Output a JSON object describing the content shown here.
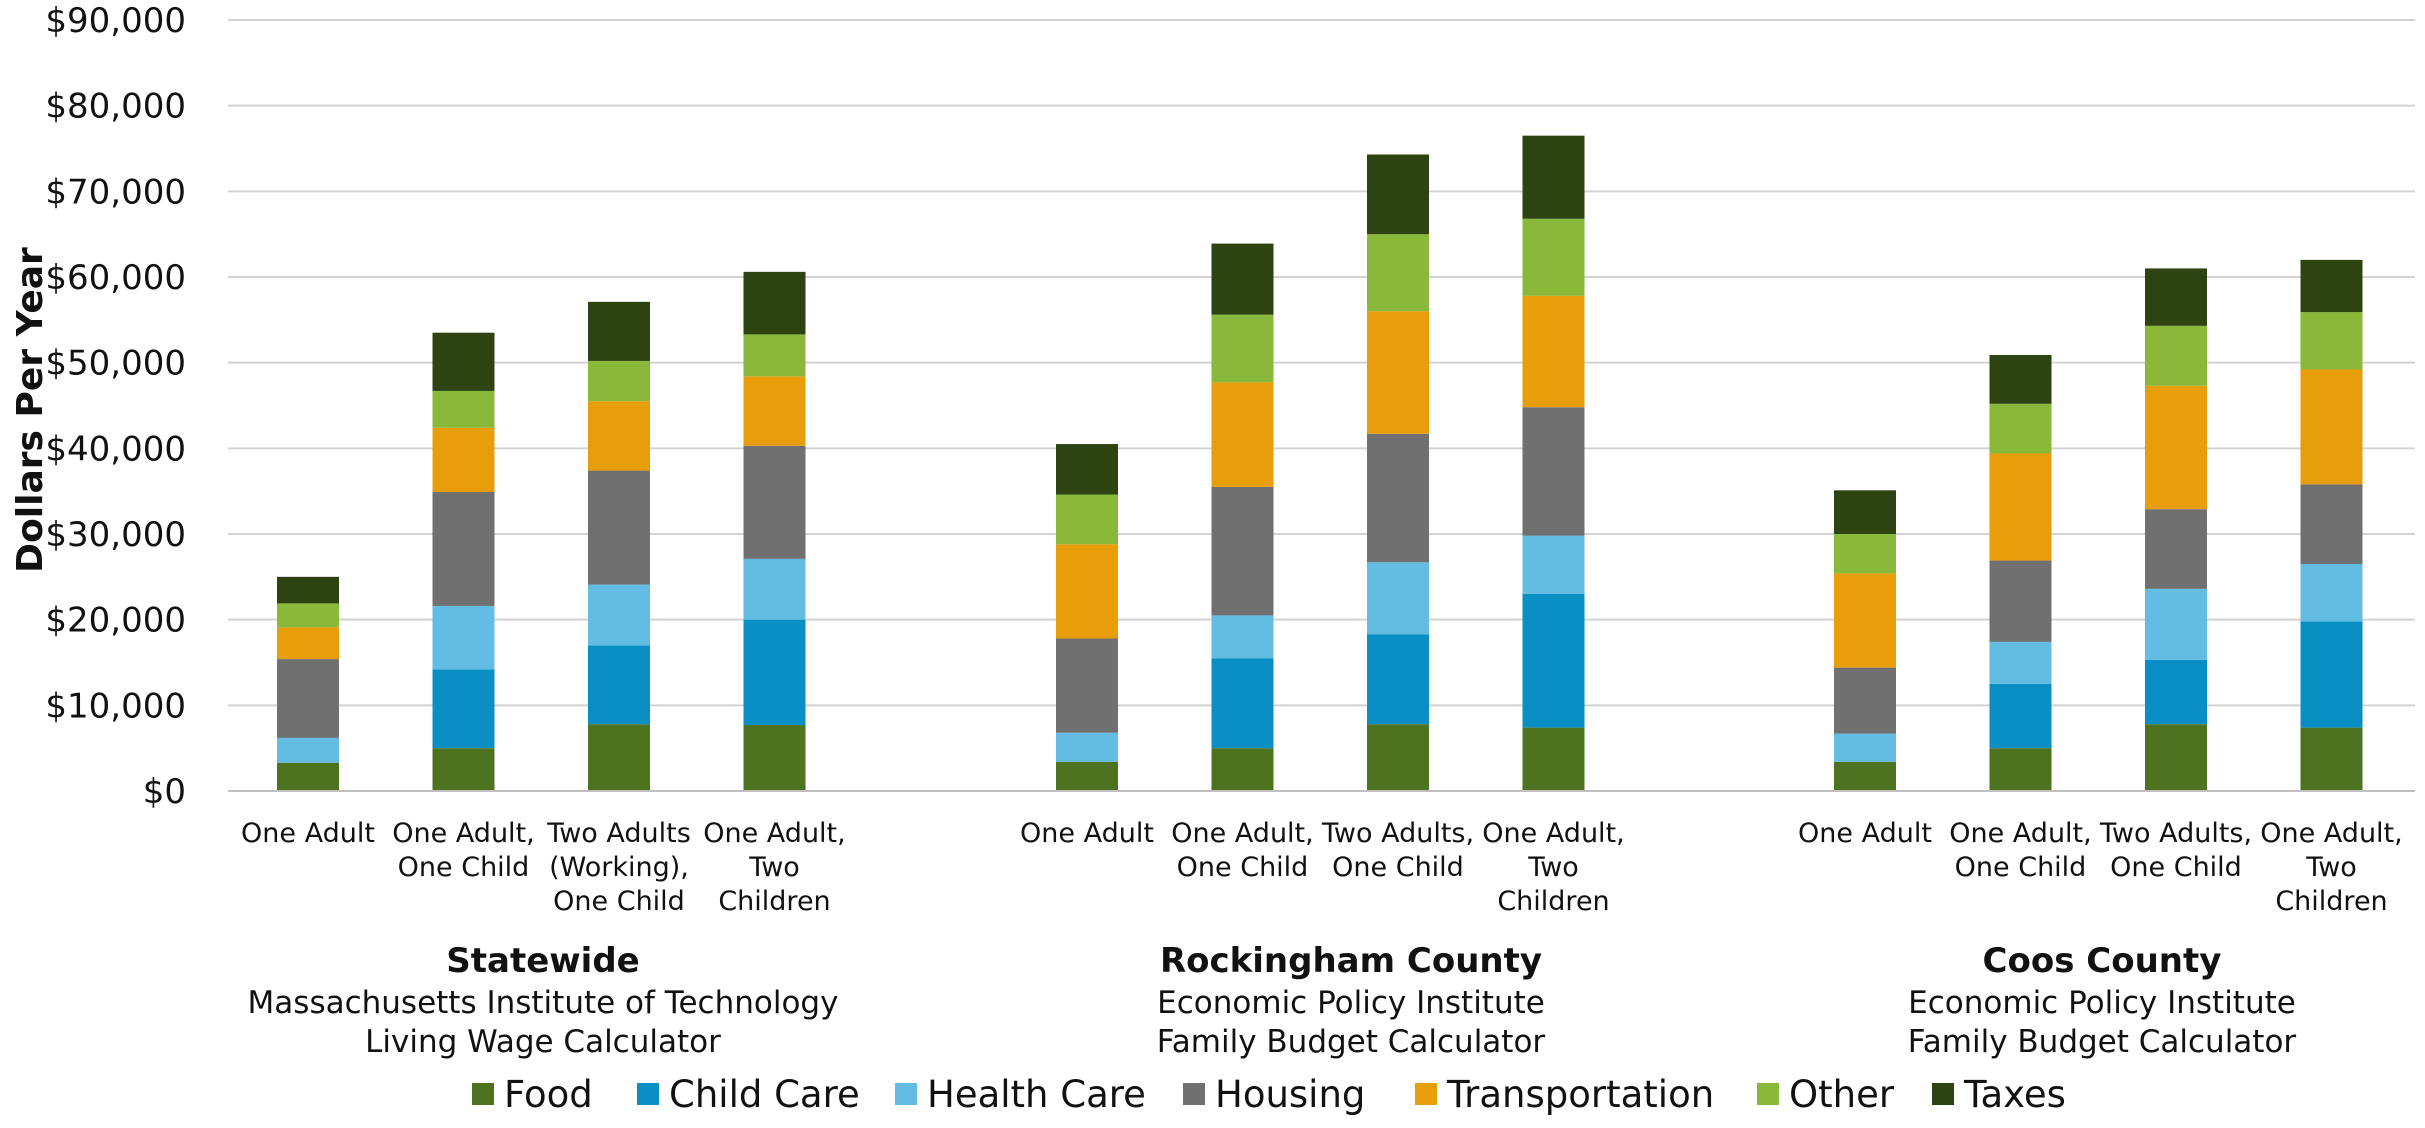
{
  "chart_data": {
    "type": "bar",
    "stacked": true,
    "ylabel": "Dollars Per Year",
    "ylim": [
      0,
      90000
    ],
    "yticks": [
      0,
      10000,
      20000,
      30000,
      40000,
      50000,
      60000,
      70000,
      80000,
      90000
    ],
    "ytick_labels": [
      "$0",
      "$10,000",
      "$20,000",
      "$30,000",
      "$40,000",
      "$50,000",
      "$60,000",
      "$70,000",
      "$80,000",
      "$90,000"
    ],
    "grid": true,
    "legend_position": "bottom",
    "groups": [
      {
        "title": "Statewide",
        "subtitle": [
          "Massachusetts Institute of Technology",
          "Living Wage Calculator"
        ],
        "categories": [
          [
            "One Adult"
          ],
          [
            "One Adult,",
            "One Child"
          ],
          [
            "Two Adults",
            "(Working),",
            "One Child"
          ],
          [
            "One Adult,",
            "Two",
            "Children"
          ]
        ]
      },
      {
        "title": "Rockingham County",
        "subtitle": [
          "Economic Policy Institute",
          "Family Budget Calculator"
        ],
        "categories": [
          [
            "One Adult"
          ],
          [
            "One Adult,",
            "One Child"
          ],
          [
            "Two Adults,",
            "One Child"
          ],
          [
            "One Adult,",
            "Two",
            "Children"
          ]
        ]
      },
      {
        "title": "Coos County",
        "subtitle": [
          "Economic Policy Institute",
          "Family Budget Calculator"
        ],
        "categories": [
          [
            "One Adult"
          ],
          [
            "One Adult,",
            "One Child"
          ],
          [
            "Two Adults,",
            "One Child"
          ],
          [
            "One Adult,",
            "Two",
            "Children"
          ]
        ]
      }
    ],
    "series": [
      {
        "name": "Food",
        "color": "#4e7320",
        "values": [
          3300,
          5000,
          7800,
          7700,
          3400,
          5000,
          7800,
          7400,
          3400,
          5000,
          7800,
          7400
        ]
      },
      {
        "name": "Child Care",
        "color": "#0a8fc4",
        "values": [
          0,
          9200,
          9200,
          12300,
          0,
          10500,
          10500,
          15600,
          0,
          7500,
          7500,
          12400
        ]
      },
      {
        "name": "Health Care",
        "color": "#63bde3",
        "values": [
          2900,
          7400,
          7100,
          7100,
          3400,
          5000,
          8400,
          6800,
          3300,
          4900,
          8300,
          6700
        ]
      },
      {
        "name": "Housing",
        "color": "#707070",
        "values": [
          9200,
          13300,
          13300,
          13200,
          11000,
          15000,
          15000,
          15000,
          7700,
          9500,
          9300,
          9300
        ]
      },
      {
        "name": "Transportation",
        "color": "#e89d0a",
        "values": [
          3700,
          7500,
          8100,
          8100,
          11000,
          12200,
          14300,
          13000,
          11000,
          12500,
          14400,
          13400
        ]
      },
      {
        "name": "Other",
        "color": "#8ab83a",
        "values": [
          2800,
          4300,
          4700,
          4900,
          5800,
          7900,
          9000,
          9000,
          4600,
          5800,
          7000,
          6700
        ]
      },
      {
        "name": "Taxes",
        "color": "#2e4312",
        "values": [
          3100,
          6800,
          6900,
          7300,
          5900,
          8300,
          9300,
          9700,
          5100,
          5700,
          6700,
          6100
        ]
      }
    ]
  }
}
